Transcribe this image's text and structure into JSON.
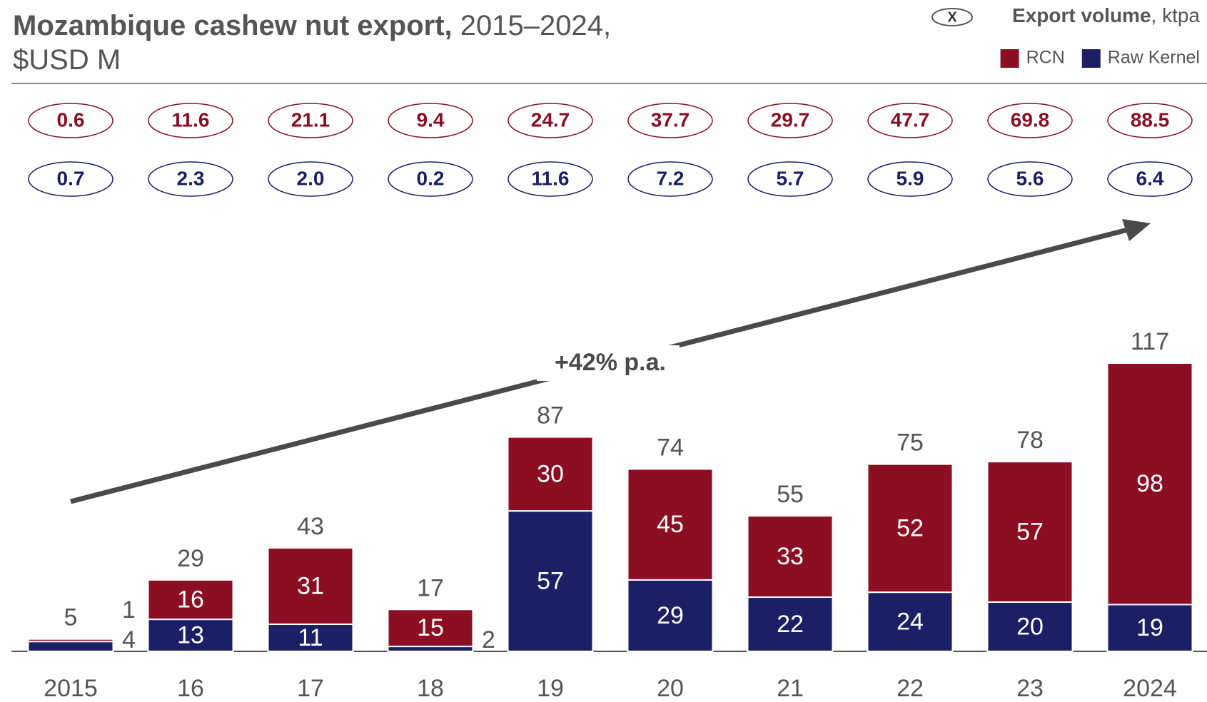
{
  "chart_data": {
    "type": "stacked_bar",
    "title": "Mozambique cashew nut export,",
    "subtitle": "2015–2024, $USD M",
    "categories": [
      "2015",
      "16",
      "17",
      "18",
      "19",
      "20",
      "21",
      "22",
      "23",
      "2024"
    ],
    "series": [
      {
        "name": "Raw Kernel",
        "color": "#1a1f66",
        "values": [
          4,
          13,
          11,
          2,
          57,
          29,
          22,
          24,
          20,
          19
        ],
        "volumes": [
          0.7,
          2.3,
          2.0,
          0.2,
          11.6,
          7.2,
          5.7,
          5.9,
          5.6,
          6.4
        ],
        "volume_labels": [
          "0.7",
          "2.3",
          "2.0",
          "0.2",
          "11.6",
          "7.2",
          "5.7",
          "5.9",
          "5.6",
          "6.4"
        ]
      },
      {
        "name": "RCN",
        "color": "#8b0e22",
        "values": [
          1,
          16,
          31,
          15,
          30,
          45,
          33,
          52,
          57,
          98
        ],
        "volumes": [
          0.6,
          11.6,
          21.1,
          9.4,
          24.7,
          37.7,
          29.7,
          47.7,
          69.8,
          88.5
        ]
      }
    ],
    "totals": [
      5,
      29,
      43,
      17,
      87,
      74,
      55,
      75,
      78,
      117
    ],
    "legend_symbol": "X",
    "legend_title": "Export volume",
    "legend_unit": ", ktpa",
    "annotation": "+42% p.a."
  }
}
